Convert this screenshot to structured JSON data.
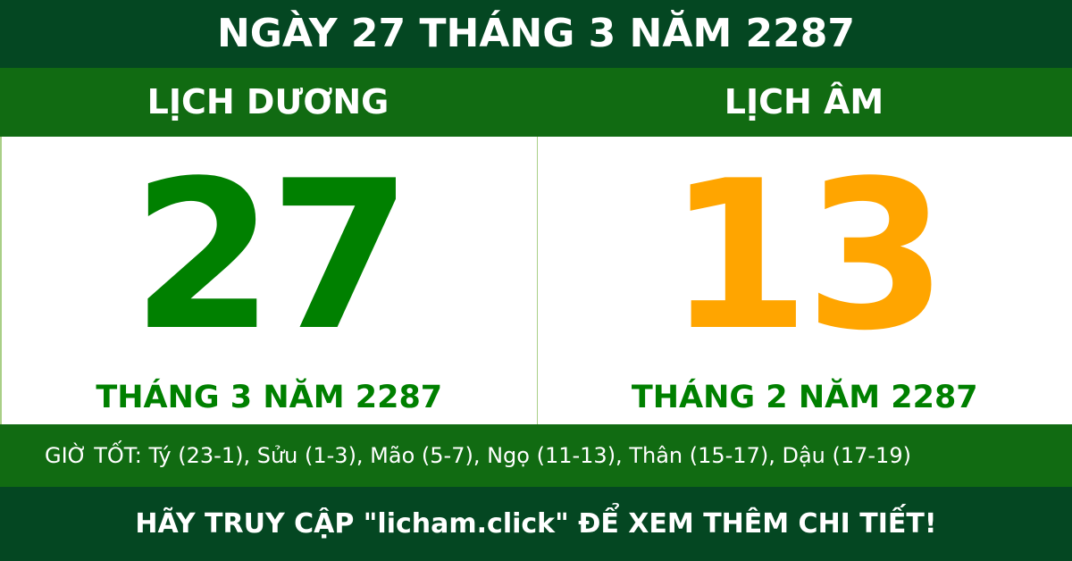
{
  "title": "NGÀY 27 THÁNG 3 NĂM 2287",
  "solar": {
    "heading": "LỊCH DƯƠNG",
    "day": "27",
    "month_year": "THÁNG 3 NĂM 2287",
    "color": "#008000"
  },
  "lunar": {
    "heading": "LỊCH ÂM",
    "day": "13",
    "month_year": "THÁNG 2 NĂM 2287",
    "color": "#ffa500"
  },
  "good_hours": "GIỜ TỐT: Tý (23-1), Sửu (1-3), Mão (5-7), Ngọ (11-13), Thân (15-17), Dậu (17-19)",
  "footer": "HÃY TRUY CẬP \"licham.click\" ĐỂ XEM THÊM CHI TIẾT!",
  "colors": {
    "dark_green": "#044722",
    "green": "#116b12"
  }
}
